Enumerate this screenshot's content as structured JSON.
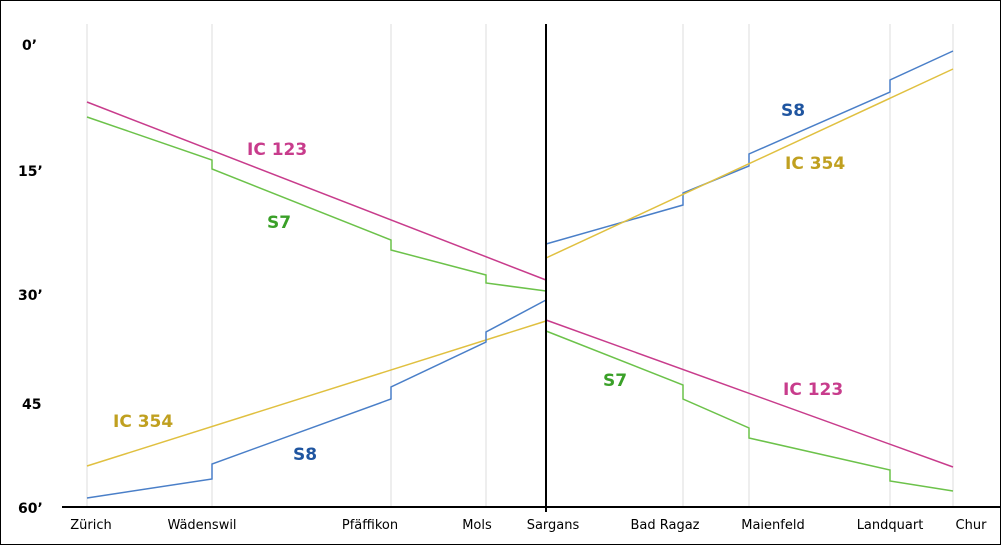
{
  "time_labels": [
    "0’",
    "15’",
    "30’",
    "45",
    "60’"
  ],
  "stations": [
    "Zürich",
    "Wädenswil",
    "Pfäffikon",
    "Mols",
    "Sargans",
    "Bad Ragaz",
    "Maienfeld",
    "Landquart",
    "Chur"
  ],
  "colors": {
    "IC 123": "#c83c8c",
    "S7": "#6cc24a",
    "S8": "#4a7fc8",
    "IC 354": "#e0c040",
    "S8_label": "#1f55a0",
    "S7_label": "#3aa028",
    "IC 354_label": "#c0a020"
  },
  "labels": {
    "ic123_west": "IC 123",
    "s7_west": "S7",
    "ic354_west": "IC 354",
    "s8_west": "S8",
    "s8_east": "S8",
    "ic354_east": "IC 354",
    "s7_east": "S7",
    "ic123_east": "IC 123"
  }
}
